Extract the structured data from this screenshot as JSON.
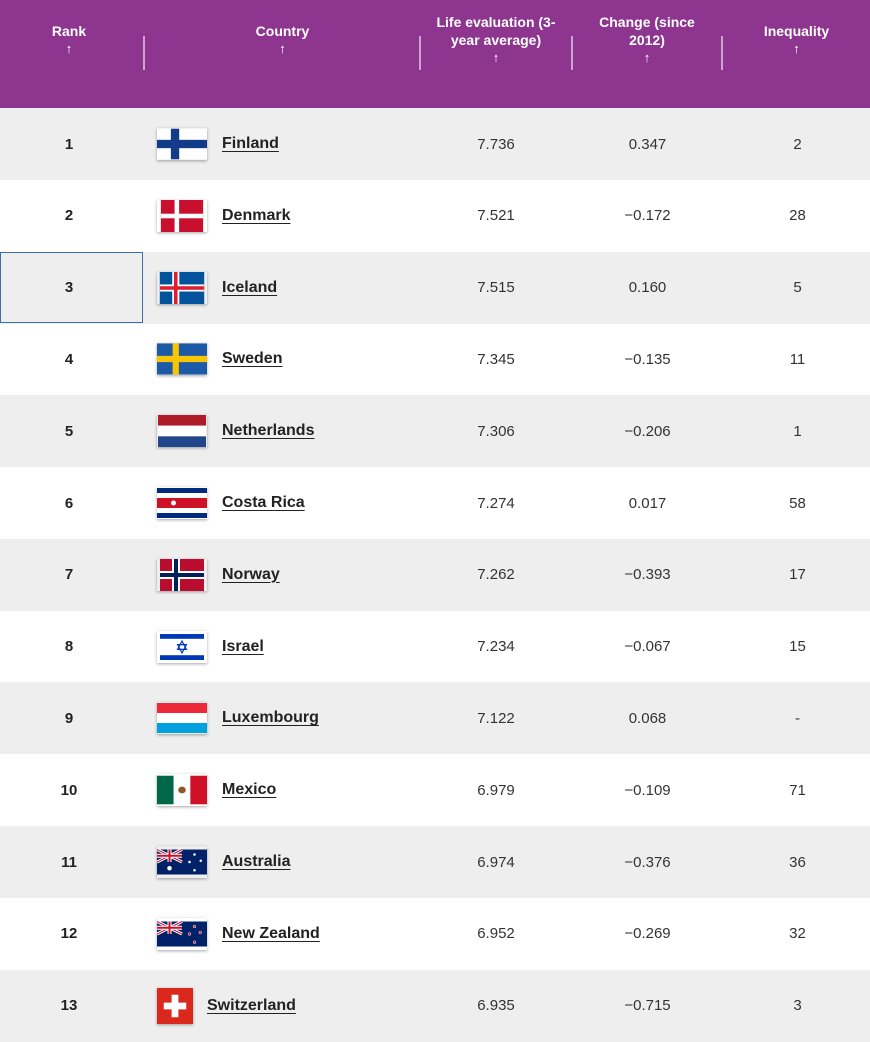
{
  "theme": {
    "header_bg": "#8e3590",
    "row_shade": "#eeeeee",
    "text": "#222222"
  },
  "headers": {
    "rank": "Rank",
    "country": "Country",
    "life": "Life evaluation (3-\nyear average)",
    "change": "Change (since\n2012)",
    "inequality": "Inequality",
    "sort_icon": "↑"
  },
  "rows": [
    {
      "rank": "1",
      "country": "Finland",
      "flag": "finland-flag",
      "life": "7.736",
      "change": "0.347",
      "inequality": "2"
    },
    {
      "rank": "2",
      "country": "Denmark",
      "flag": "denmark-flag",
      "life": "7.521",
      "change": "−0.172",
      "inequality": "28"
    },
    {
      "rank": "3",
      "country": "Iceland",
      "flag": "iceland-flag",
      "life": "7.515",
      "change": "0.160",
      "inequality": "5"
    },
    {
      "rank": "4",
      "country": "Sweden",
      "flag": "sweden-flag",
      "life": "7.345",
      "change": "−0.135",
      "inequality": "11"
    },
    {
      "rank": "5",
      "country": "Netherlands",
      "flag": "netherlands-flag",
      "life": "7.306",
      "change": "−0.206",
      "inequality": "1"
    },
    {
      "rank": "6",
      "country": "Costa Rica",
      "flag": "costa-rica-flag",
      "life": "7.274",
      "change": "0.017",
      "inequality": "58"
    },
    {
      "rank": "7",
      "country": "Norway",
      "flag": "norway-flag",
      "life": "7.262",
      "change": "−0.393",
      "inequality": "17"
    },
    {
      "rank": "8",
      "country": "Israel",
      "flag": "israel-flag",
      "life": "7.234",
      "change": "−0.067",
      "inequality": "15"
    },
    {
      "rank": "9",
      "country": "Luxembourg",
      "flag": "luxembourg-flag",
      "life": "7.122",
      "change": "0.068",
      "inequality": "-"
    },
    {
      "rank": "10",
      "country": "Mexico",
      "flag": "mexico-flag",
      "life": "6.979",
      "change": "−0.109",
      "inequality": "71"
    },
    {
      "rank": "11",
      "country": "Australia",
      "flag": "australia-flag",
      "life": "6.974",
      "change": "−0.376",
      "inequality": "36"
    },
    {
      "rank": "12",
      "country": "New Zealand",
      "flag": "new-zealand-flag",
      "life": "6.952",
      "change": "−0.269",
      "inequality": "32"
    },
    {
      "rank": "13",
      "country": "Switzerland",
      "flag": "switzerland-flag",
      "life": "6.935",
      "change": "−0.715",
      "inequality": "3"
    }
  ]
}
